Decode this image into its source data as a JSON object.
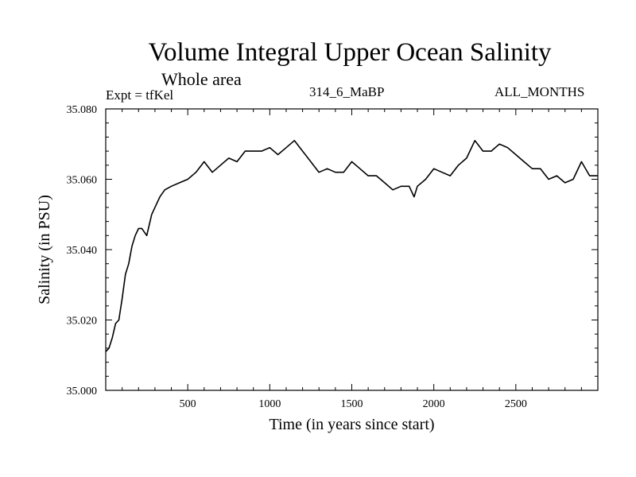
{
  "header": {
    "subtitle": "Whole area",
    "expt_label": "Expt = tfKel",
    "run_id": "314_6_MaBP",
    "months": "ALL_MONTHS"
  },
  "chart_data": {
    "type": "line",
    "title": "Volume Integral Upper Ocean Salinity",
    "xlabel": "Time (in years since start)",
    "ylabel": "Salinity (in PSU)",
    "xlim": [
      0,
      3000
    ],
    "ylim": [
      35.0,
      35.08
    ],
    "x_ticks": [
      500,
      1000,
      1500,
      2000,
      2500
    ],
    "x_tick_labels": [
      "500",
      "1000",
      "1500",
      "2000",
      "2500"
    ],
    "y_ticks": [
      35.0,
      35.02,
      35.04,
      35.06,
      35.08
    ],
    "y_tick_labels": [
      "35.000",
      "35.020",
      "35.040",
      "35.060",
      "35.080"
    ],
    "grid": false,
    "line_color": "#000000",
    "series": [
      {
        "x": [
          0,
          20,
          40,
          60,
          80,
          100,
          120,
          140,
          160,
          180,
          200,
          220,
          250,
          280,
          300,
          330,
          360,
          400,
          450,
          500,
          550,
          600,
          650,
          700,
          750,
          800,
          850,
          900,
          950,
          1000,
          1050,
          1100,
          1150,
          1200,
          1250,
          1300,
          1350,
          1400,
          1450,
          1500,
          1550,
          1600,
          1650,
          1700,
          1750,
          1800,
          1850,
          1880,
          1900,
          1950,
          2000,
          2050,
          2100,
          2150,
          2200,
          2250,
          2300,
          2350,
          2400,
          2450,
          2500,
          2550,
          2600,
          2650,
          2700,
          2750,
          2800,
          2850,
          2900,
          2950,
          3000
        ],
        "y": [
          35.011,
          35.012,
          35.015,
          35.019,
          35.02,
          35.026,
          35.033,
          35.036,
          35.041,
          35.044,
          35.046,
          35.046,
          35.044,
          35.05,
          35.052,
          35.055,
          35.057,
          35.058,
          35.059,
          35.06,
          35.062,
          35.065,
          35.062,
          35.064,
          35.066,
          35.065,
          35.068,
          35.068,
          35.068,
          35.069,
          35.067,
          35.069,
          35.071,
          35.068,
          35.065,
          35.062,
          35.063,
          35.062,
          35.062,
          35.065,
          35.063,
          35.061,
          35.061,
          35.059,
          35.057,
          35.058,
          35.058,
          35.055,
          35.058,
          35.06,
          35.063,
          35.062,
          35.061,
          35.064,
          35.066,
          35.071,
          35.068,
          35.068,
          35.07,
          35.069,
          35.067,
          35.065,
          35.063,
          35.063,
          35.06,
          35.061,
          35.059,
          35.06,
          35.065,
          35.061,
          35.061
        ]
      }
    ]
  }
}
